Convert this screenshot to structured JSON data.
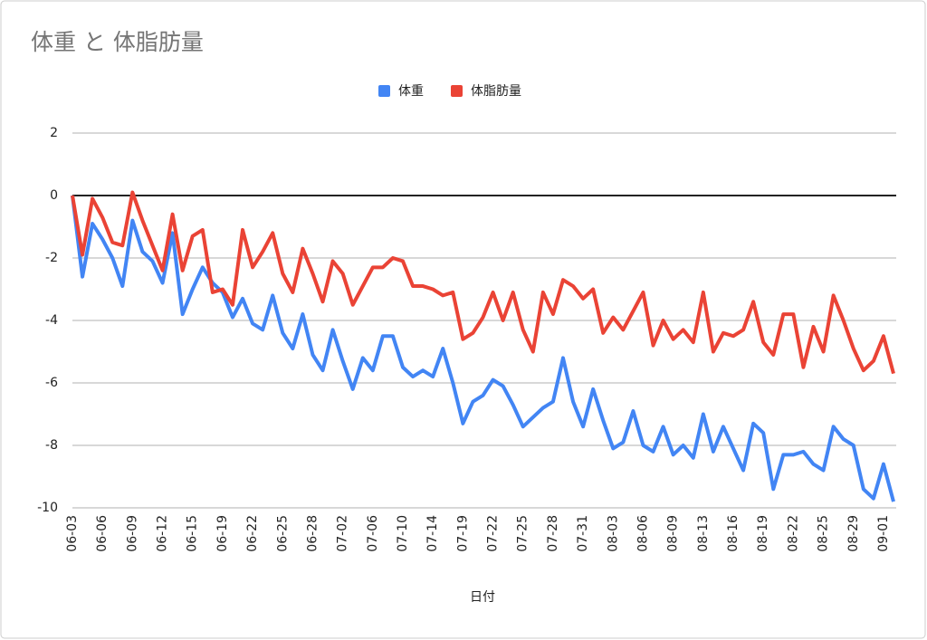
{
  "chart_data": {
    "type": "line",
    "title": "体重 と 体脂肪量",
    "x_label": "日付",
    "categories": [
      "06-03",
      null,
      null,
      "06-06",
      null,
      null,
      "06-09",
      null,
      null,
      "06-12",
      null,
      null,
      "06-15",
      null,
      null,
      "06-19",
      null,
      null,
      "06-22",
      null,
      null,
      "06-25",
      null,
      null,
      "06-28",
      null,
      null,
      "07-02",
      null,
      null,
      "07-06",
      null,
      null,
      "07-10",
      null,
      null,
      "07-14",
      null,
      null,
      "07-19",
      null,
      null,
      "07-22",
      null,
      null,
      "07-25",
      null,
      null,
      "07-28",
      null,
      null,
      "07-31",
      null,
      null,
      "08-03",
      null,
      null,
      "08-06",
      null,
      null,
      "08-09",
      null,
      null,
      "08-13",
      null,
      null,
      "08-16",
      null,
      null,
      "08-19",
      null,
      null,
      "08-22",
      null,
      null,
      "08-25",
      null,
      null,
      "08-29",
      null,
      null,
      "09-01",
      null
    ],
    "series": [
      {
        "name": "体重",
        "color": "#4285f4",
        "values": [
          0,
          -2.6,
          -0.9,
          -1.4,
          -2.0,
          -2.9,
          -0.8,
          -1.8,
          -2.1,
          -2.8,
          -1.2,
          -3.8,
          -3.0,
          -2.3,
          -2.8,
          -3.1,
          -3.9,
          -3.3,
          -4.1,
          -4.3,
          -3.2,
          -4.4,
          -4.9,
          -3.8,
          -5.1,
          -5.6,
          -4.3,
          -5.3,
          -6.2,
          -5.2,
          -5.6,
          -4.5,
          -4.5,
          -5.5,
          -5.8,
          -5.6,
          -5.8,
          -4.9,
          -6.0,
          -7.3,
          -6.6,
          -6.4,
          -5.9,
          -6.1,
          -6.7,
          -7.4,
          -7.1,
          -6.8,
          -6.6,
          -5.2,
          -6.6,
          -7.4,
          -6.2,
          -7.2,
          -8.1,
          -7.9,
          -6.9,
          -8.0,
          -8.2,
          -7.4,
          -8.3,
          -8.0,
          -8.4,
          -7.0,
          -8.2,
          -7.4,
          -8.1,
          -8.8,
          -7.3,
          -7.6,
          -9.4,
          -8.3,
          -8.3,
          -8.2,
          -8.6,
          -8.8,
          -7.4,
          -7.8,
          -8.0,
          -9.4,
          -9.7,
          -8.6,
          -9.8
        ]
      },
      {
        "name": "体脂肪量",
        "color": "#ea4335",
        "values": [
          0,
          -1.9,
          -0.1,
          -0.7,
          -1.5,
          -1.6,
          0.1,
          -0.8,
          -1.6,
          -2.4,
          -0.6,
          -2.4,
          -1.3,
          -1.1,
          -3.1,
          -3.0,
          -3.5,
          -1.1,
          -2.3,
          -1.8,
          -1.2,
          -2.5,
          -3.1,
          -1.7,
          -2.5,
          -3.4,
          -2.1,
          -2.5,
          -3.5,
          -2.9,
          -2.3,
          -2.3,
          -2.0,
          -2.1,
          -2.9,
          -2.9,
          -3.0,
          -3.2,
          -3.1,
          -4.6,
          -4.4,
          -3.9,
          -3.1,
          -4.0,
          -3.1,
          -4.3,
          -5.0,
          -3.1,
          -3.8,
          -2.7,
          -2.9,
          -3.3,
          -3.0,
          -4.4,
          -3.9,
          -4.3,
          -3.7,
          -3.1,
          -4.8,
          -4.0,
          -4.6,
          -4.3,
          -4.7,
          -3.1,
          -5.0,
          -4.4,
          -4.5,
          -4.3,
          -3.4,
          -4.7,
          -5.1,
          -3.8,
          -3.8,
          -5.5,
          -4.2,
          -5.0,
          -3.2,
          -4.0,
          -4.9,
          -5.6,
          -5.3,
          -4.5,
          -5.7
        ]
      }
    ],
    "ylim": [
      -10,
      2
    ],
    "yticks": [
      -10,
      -8,
      -6,
      -4,
      -2,
      0,
      2
    ],
    "grid": true,
    "legend": "top"
  }
}
